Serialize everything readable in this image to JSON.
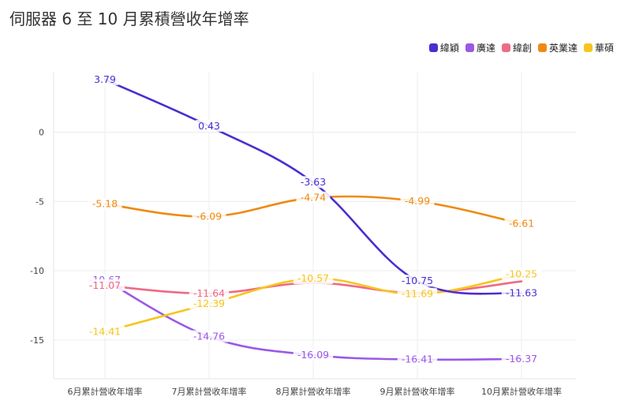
{
  "title": "伺服器 6 至 10 月累積營收年增率",
  "chart_data": {
    "type": "line",
    "title": "伺服器 6 至 10 月累積營收年增率",
    "categories": [
      "6月累計營收年增率",
      "7月累計營收年增率",
      "8月累計營收年增率",
      "9月累計營收年增率",
      "10月累計營收年增率"
    ],
    "ylim": [
      -17.8,
      4.3
    ],
    "yticks": [
      0,
      -5,
      -10,
      -15
    ],
    "grid": true,
    "legend_position": "top-right",
    "series": [
      {
        "name": "緯穎",
        "color": "#4b2ed1",
        "values": [
          3.79,
          0.43,
          -3.63,
          -10.75,
          -11.63
        ]
      },
      {
        "name": "廣達",
        "color": "#9b59e6",
        "values": [
          -10.67,
          -14.76,
          -16.09,
          -16.41,
          -16.37
        ]
      },
      {
        "name": "緯創",
        "color": "#ee6a86",
        "values": [
          -11.07,
          -11.64,
          -10.88,
          -11.6,
          -10.77
        ]
      },
      {
        "name": "英業達",
        "color": "#ee8a12",
        "values": [
          -5.18,
          -6.09,
          -4.74,
          -4.99,
          -6.61
        ]
      },
      {
        "name": "華碩",
        "color": "#f7c520",
        "values": [
          -14.41,
          -12.39,
          -10.57,
          -11.69,
          -10.25
        ]
      }
    ],
    "data_labels": [
      [
        "3.79",
        "0.43",
        "-3.63",
        "-10.75",
        "-11.63"
      ],
      [
        "-10.67",
        "-14.76",
        "-16.09",
        "-16.41",
        "-16.37"
      ],
      [
        "-11.07",
        "-11.64",
        "",
        "",
        ""
      ],
      [
        "-5.18",
        "-6.09",
        "-4.74",
        "-4.99",
        "-6.61"
      ],
      [
        "-14.41",
        "-12.39",
        "-10.57",
        "-11.69",
        "-10.25"
      ]
    ]
  }
}
